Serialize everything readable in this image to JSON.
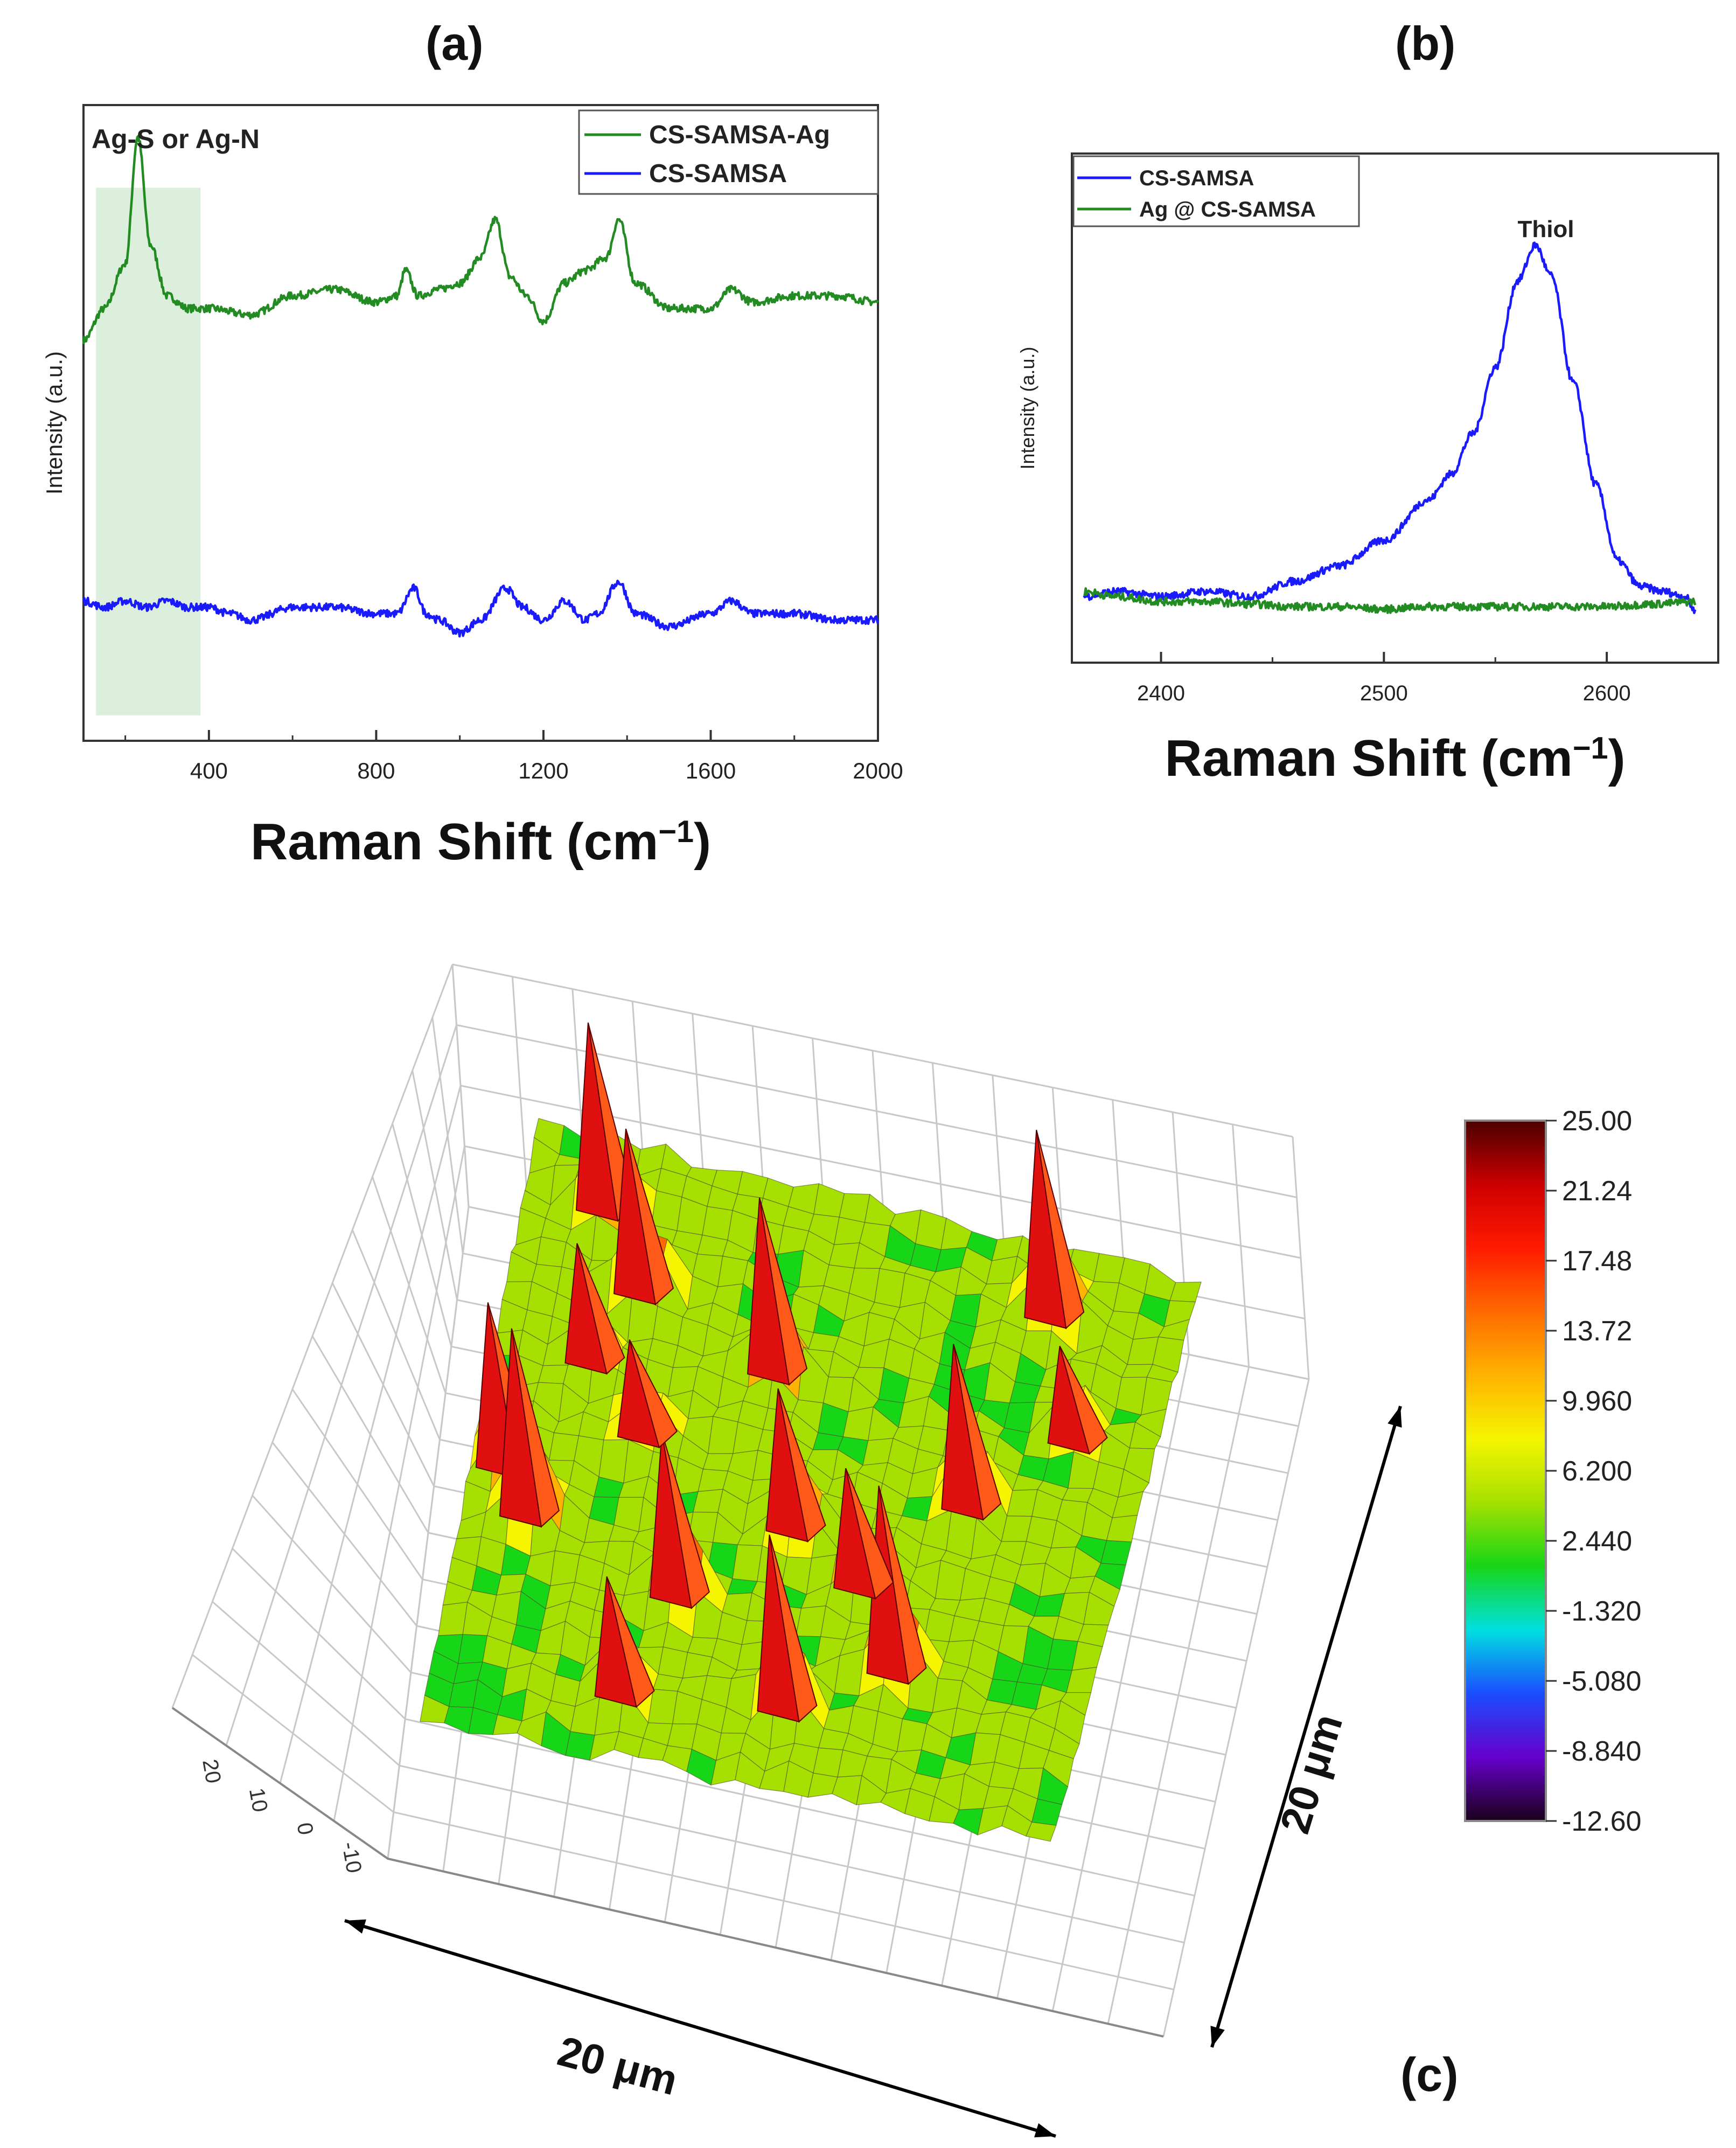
{
  "panels": {
    "a": {
      "label": "(a)"
    },
    "b": {
      "label": "(b)"
    },
    "c": {
      "label": "(c)"
    }
  },
  "chart_data": [
    {
      "type": "line",
      "panel": "(a)",
      "xlabel_main": "Raman Shift (cm",
      "xlabel_sup": "−1",
      "xlabel_close": ")",
      "ylabel": "Intensity (a.u.)",
      "xlim": [
        100,
        2000
      ],
      "xticks": [
        "400",
        "800",
        "1200",
        "1600",
        "2000"
      ],
      "annotation": "Ag-S or Ag-N",
      "highlight_range": [
        130,
        380
      ],
      "legend_position": "top-right",
      "colors": {
        "CS-SAMSA-Ag": "#228B22",
        "CS-SAMSA": "#1a1aff",
        "highlight": "#dcefdc"
      },
      "series": [
        {
          "name": "CS-SAMSA-Ag",
          "x": [
            100,
            150,
            200,
            230,
            260,
            300,
            350,
            400,
            500,
            600,
            700,
            800,
            850,
            870,
            900,
            950,
            1000,
            1050,
            1085,
            1120,
            1160,
            1200,
            1250,
            1300,
            1350,
            1380,
            1420,
            1500,
            1600,
            1650,
            1700,
            1800,
            1900,
            2000
          ],
          "y": [
            0.63,
            0.68,
            0.75,
            0.95,
            0.78,
            0.7,
            0.68,
            0.68,
            0.67,
            0.7,
            0.71,
            0.69,
            0.7,
            0.74,
            0.7,
            0.71,
            0.72,
            0.76,
            0.82,
            0.73,
            0.7,
            0.66,
            0.72,
            0.74,
            0.76,
            0.82,
            0.72,
            0.68,
            0.68,
            0.71,
            0.69,
            0.7,
            0.7,
            0.69
          ]
        },
        {
          "name": "CS-SAMSA",
          "x": [
            100,
            150,
            200,
            250,
            300,
            350,
            400,
            450,
            500,
            600,
            700,
            800,
            850,
            890,
            920,
            950,
            1000,
            1050,
            1110,
            1150,
            1200,
            1250,
            1300,
            1330,
            1380,
            1420,
            1500,
            1600,
            1650,
            1700,
            1800,
            1900,
            2000
          ],
          "y": [
            0.22,
            0.21,
            0.22,
            0.21,
            0.22,
            0.21,
            0.21,
            0.2,
            0.19,
            0.21,
            0.21,
            0.2,
            0.2,
            0.24,
            0.2,
            0.19,
            0.17,
            0.19,
            0.24,
            0.21,
            0.19,
            0.22,
            0.19,
            0.2,
            0.25,
            0.2,
            0.18,
            0.2,
            0.22,
            0.2,
            0.2,
            0.19,
            0.19
          ]
        }
      ]
    },
    {
      "type": "line",
      "panel": "(b)",
      "xlabel_main": "Raman Shift (cm",
      "xlabel_sup": "−1",
      "xlabel_close": ")",
      "ylabel": "Intensity (a.u.)",
      "xlim": [
        2360,
        2650
      ],
      "xticks": [
        "2400",
        "2500",
        "2600"
      ],
      "annotation": "Thiol",
      "legend_position": "top-left",
      "colors": {
        "CS-SAMSA": "#1a1aff",
        "Ag @ CS-SAMSA": "#228B22"
      },
      "series": [
        {
          "name": "CS-SAMSA",
          "x": [
            2365,
            2380,
            2400,
            2420,
            2440,
            2460,
            2480,
            2500,
            2520,
            2530,
            2540,
            2550,
            2560,
            2568,
            2575,
            2585,
            2595,
            2605,
            2615,
            2625,
            2635,
            2640
          ],
          "y": [
            0.13,
            0.14,
            0.13,
            0.14,
            0.13,
            0.16,
            0.19,
            0.24,
            0.32,
            0.37,
            0.45,
            0.58,
            0.75,
            0.82,
            0.76,
            0.55,
            0.35,
            0.2,
            0.15,
            0.14,
            0.13,
            0.1
          ]
        },
        {
          "name": "Ag @ CS-SAMSA",
          "x": [
            2365,
            2380,
            2400,
            2420,
            2440,
            2460,
            2480,
            2500,
            2520,
            2540,
            2560,
            2580,
            2600,
            2620,
            2640
          ],
          "y": [
            0.14,
            0.13,
            0.12,
            0.12,
            0.115,
            0.11,
            0.11,
            0.105,
            0.11,
            0.11,
            0.11,
            0.11,
            0.11,
            0.115,
            0.12
          ]
        }
      ]
    },
    {
      "type": "heatmap",
      "panel": "(c)",
      "description_axes": {
        "x_label": "20 μm",
        "y_label": "20 μm"
      },
      "z_ticks": [
        "20",
        "10",
        "0",
        "-10"
      ],
      "colorbar_labels": [
        "25.00",
        "21.24",
        "17.48",
        "13.72",
        "9.960",
        "6.200",
        "2.440",
        "-1.320",
        "-5.080",
        "-8.840",
        "-12.60"
      ],
      "colorbar_range": [
        -12.6,
        25.0
      ],
      "colorbar_colors": [
        "#4b0000",
        "#cc0000",
        "#ff1a00",
        "#ff6a00",
        "#ffb300",
        "#f5f500",
        "#a6e000",
        "#17d617",
        "#00e0e0",
        "#1a4dff",
        "#6600cc",
        "#1a001a"
      ],
      "peaks": [
        {
          "u": 0.12,
          "v": 0.1,
          "h": 0.9
        },
        {
          "u": 0.2,
          "v": 0.22,
          "h": 0.8
        },
        {
          "u": 0.15,
          "v": 0.35,
          "h": 0.6
        },
        {
          "u": 0.05,
          "v": 0.55,
          "h": 0.8
        },
        {
          "u": 0.1,
          "v": 0.62,
          "h": 0.9
        },
        {
          "u": 0.42,
          "v": 0.3,
          "h": 0.85
        },
        {
          "u": 0.8,
          "v": 0.1,
          "h": 0.9
        },
        {
          "u": 0.75,
          "v": 0.45,
          "h": 0.8
        },
        {
          "u": 0.5,
          "v": 0.55,
          "h": 0.7
        },
        {
          "u": 0.35,
          "v": 0.7,
          "h": 0.8
        },
        {
          "u": 0.55,
          "v": 0.85,
          "h": 0.85
        },
        {
          "u": 0.7,
          "v": 0.75,
          "h": 0.9
        },
        {
          "u": 0.3,
          "v": 0.88,
          "h": 0.6
        },
        {
          "u": 0.62,
          "v": 0.62,
          "h": 0.6
        },
        {
          "u": 0.25,
          "v": 0.45,
          "h": 0.5
        },
        {
          "u": 0.88,
          "v": 0.3,
          "h": 0.5
        }
      ]
    }
  ]
}
